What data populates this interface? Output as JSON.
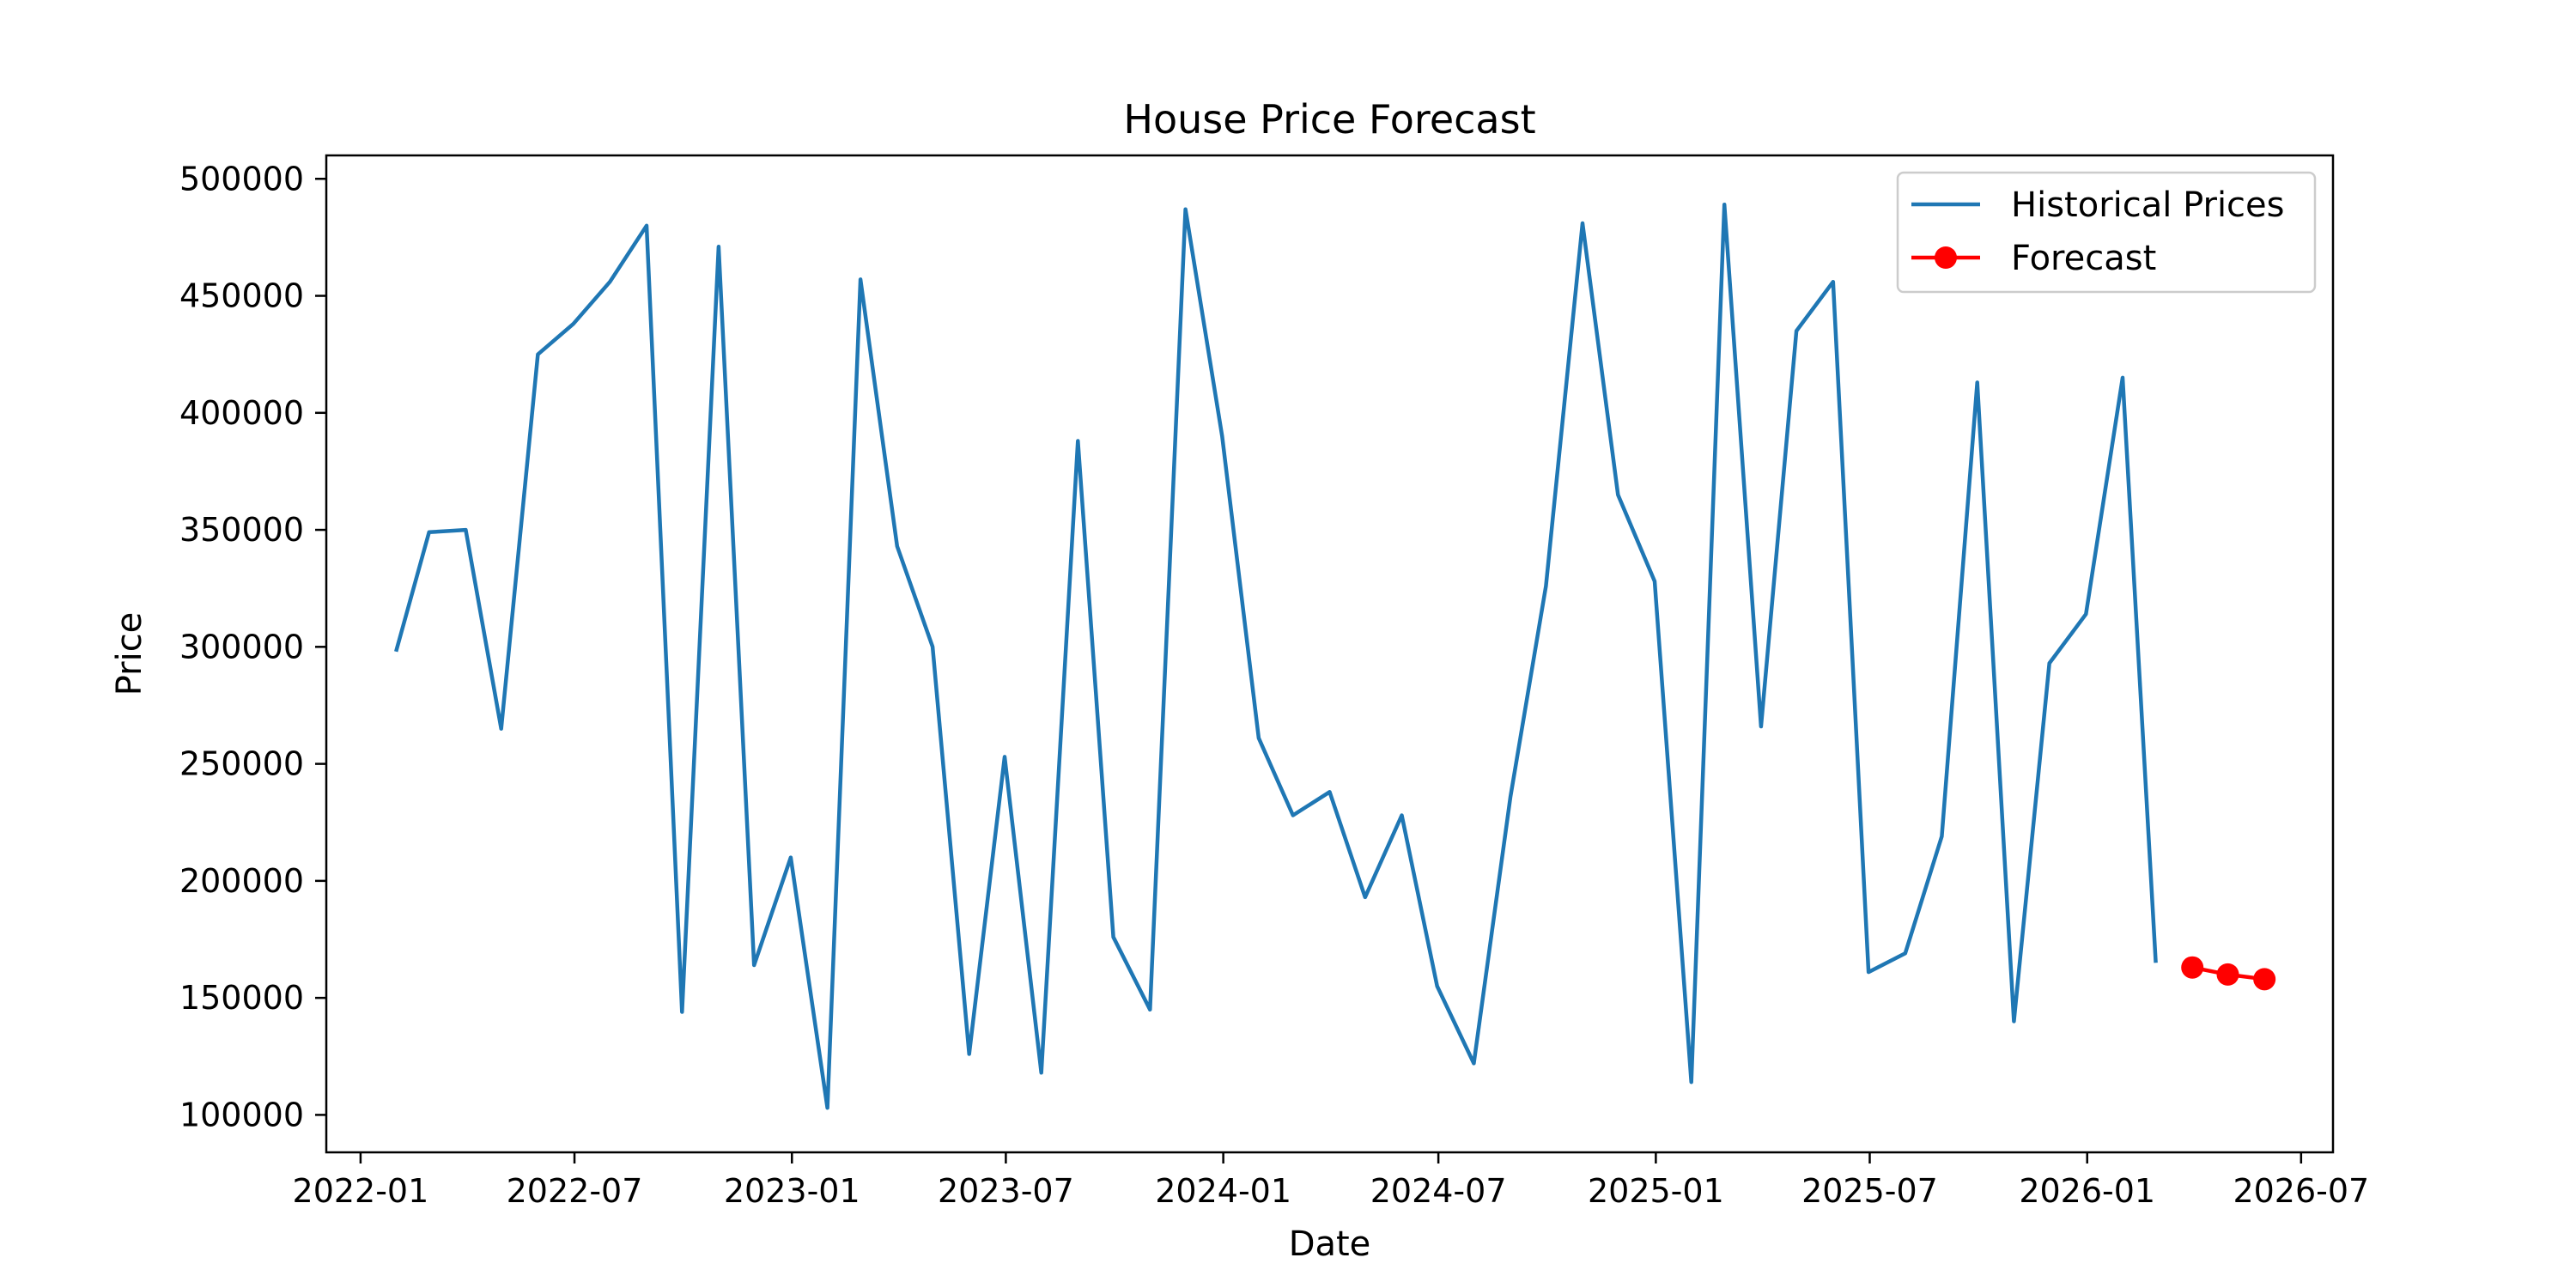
{
  "chart_data": {
    "type": "line",
    "title": "House Price Forecast",
    "xlabel": "Date",
    "ylabel": "Price",
    "xlim": [
      "2021-12-03",
      "2026-07-28"
    ],
    "ylim": [
      84000,
      510000
    ],
    "x_ticks": [
      "2022-01",
      "2022-07",
      "2023-01",
      "2023-07",
      "2024-01",
      "2024-07",
      "2025-01",
      "2025-07",
      "2026-01",
      "2026-07"
    ],
    "y_ticks": [
      100000,
      150000,
      200000,
      250000,
      300000,
      350000,
      400000,
      450000,
      500000
    ],
    "grid": false,
    "legend_position": "top-right",
    "series": [
      {
        "name": "Historical Prices",
        "style": "line",
        "color": "#1f77b4",
        "x": [
          "2022-01-31",
          "2022-02-28",
          "2022-03-31",
          "2022-04-30",
          "2022-05-31",
          "2022-06-30",
          "2022-07-31",
          "2022-08-31",
          "2022-09-30",
          "2022-10-31",
          "2022-11-30",
          "2022-12-31",
          "2023-01-31",
          "2023-02-28",
          "2023-03-31",
          "2023-04-30",
          "2023-05-31",
          "2023-06-30",
          "2023-07-31",
          "2023-08-31",
          "2023-09-30",
          "2023-10-31",
          "2023-11-30",
          "2023-12-31",
          "2024-01-31",
          "2024-02-29",
          "2024-03-31",
          "2024-04-30",
          "2024-05-31",
          "2024-06-30",
          "2024-07-31",
          "2024-08-31",
          "2024-09-30",
          "2024-10-31",
          "2024-11-30",
          "2024-12-31",
          "2025-01-31",
          "2025-02-28",
          "2025-03-31",
          "2025-04-30",
          "2025-05-31",
          "2025-06-30",
          "2025-07-31",
          "2025-08-31",
          "2025-09-30",
          "2025-10-31",
          "2025-11-30",
          "2025-12-31",
          "2026-01-31",
          "2026-02-28"
        ],
        "values": [
          298000,
          349000,
          350000,
          265000,
          425000,
          438000,
          456000,
          480000,
          144000,
          471000,
          164000,
          210000,
          103000,
          457000,
          343000,
          300000,
          126000,
          253000,
          118000,
          388000,
          176000,
          145000,
          487000,
          390000,
          261000,
          228000,
          238000,
          193000,
          228000,
          155000,
          122000,
          236000,
          326000,
          481000,
          365000,
          328000,
          114000,
          489000,
          266000,
          435000,
          456000,
          161000,
          169000,
          219000,
          413000,
          140000,
          293000,
          314000,
          415000,
          165000
        ]
      },
      {
        "name": "Forecast",
        "style": "line-marker",
        "color": "#ff0000",
        "x": [
          "2026-03-31",
          "2026-04-30",
          "2026-05-31"
        ],
        "values": [
          163000,
          160000,
          158000
        ]
      }
    ]
  }
}
